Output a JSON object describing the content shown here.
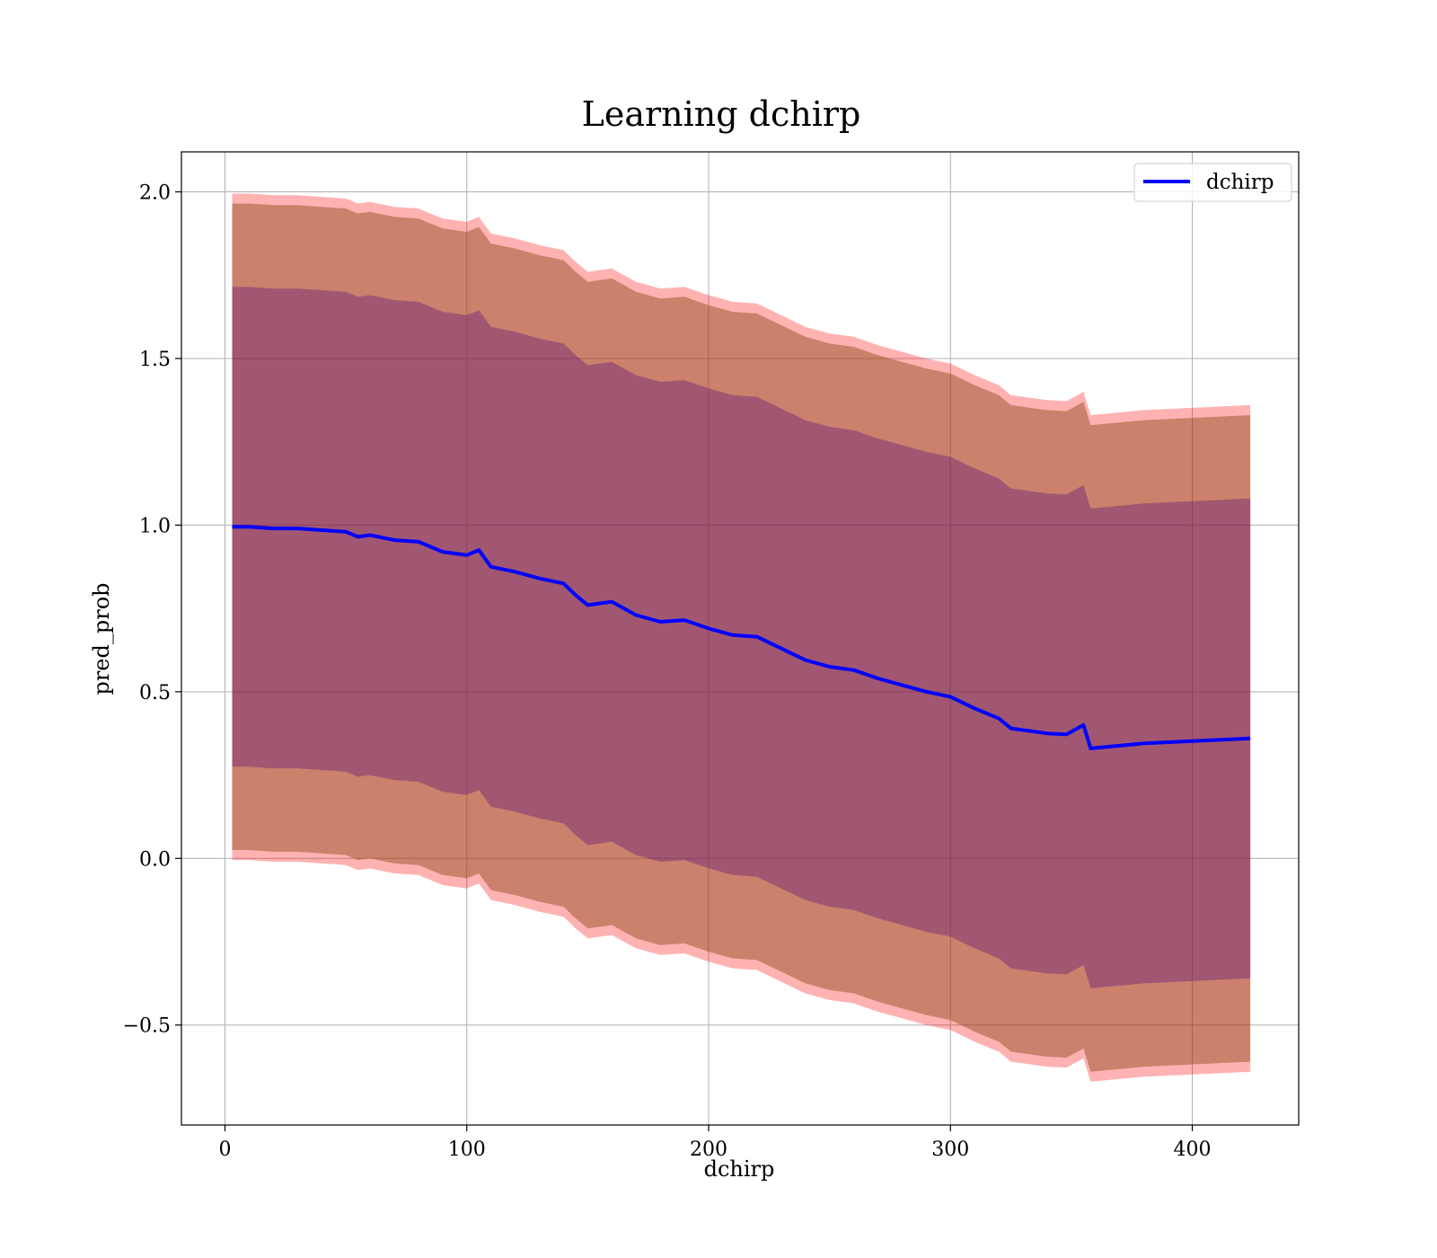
{
  "chart_data": {
    "type": "line",
    "title": "Learning dchirp",
    "xlabel": "dchirp",
    "ylabel": "pred_prob",
    "xlim": [
      -18,
      444
    ],
    "ylim": [
      -0.8,
      2.12
    ],
    "xticks": [
      0,
      100,
      200,
      300,
      400
    ],
    "yticks": [
      -0.5,
      0.0,
      0.5,
      1.0,
      1.5,
      2.0
    ],
    "xtick_labels": [
      "0",
      "100",
      "200",
      "300",
      "400"
    ],
    "ytick_labels": [
      "−0.5",
      "0.0",
      "0.5",
      "1.0",
      "1.5",
      "2.0"
    ],
    "grid": true,
    "legend": {
      "position": "top-right",
      "entries": [
        "dchirp"
      ]
    },
    "colors": {
      "line": "#0000ff",
      "outer_band": "#ff0000",
      "middle_band": "#8b4513",
      "inner_band": "#4b0082",
      "grid": "#b0b0b0"
    },
    "x": [
      3,
      10,
      20,
      30,
      40,
      50,
      55,
      60,
      70,
      80,
      90,
      100,
      105,
      110,
      120,
      130,
      140,
      145,
      150,
      160,
      170,
      180,
      190,
      200,
      210,
      220,
      230,
      240,
      250,
      260,
      270,
      280,
      290,
      300,
      310,
      320,
      325,
      335,
      340,
      348,
      355,
      358,
      380,
      424
    ],
    "series": [
      {
        "name": "dchirp",
        "values": [
          0.995,
          0.995,
          0.99,
          0.99,
          0.985,
          0.98,
          0.965,
          0.97,
          0.955,
          0.95,
          0.92,
          0.91,
          0.925,
          0.875,
          0.86,
          0.84,
          0.825,
          0.79,
          0.76,
          0.77,
          0.73,
          0.71,
          0.715,
          0.69,
          0.67,
          0.665,
          0.63,
          0.595,
          0.575,
          0.565,
          0.54,
          0.52,
          0.5,
          0.485,
          0.45,
          0.42,
          0.39,
          0.38,
          0.375,
          0.372,
          0.4,
          0.33,
          0.345,
          0.36
        ]
      }
    ],
    "bands": [
      {
        "name": "outer",
        "lower_offset": -1.0,
        "upper_offset": 1.0
      },
      {
        "name": "middle",
        "lower_offset": -0.97,
        "upper_offset": 0.97
      },
      {
        "name": "inner",
        "lower_offset": -0.72,
        "upper_offset": 0.72
      }
    ]
  }
}
